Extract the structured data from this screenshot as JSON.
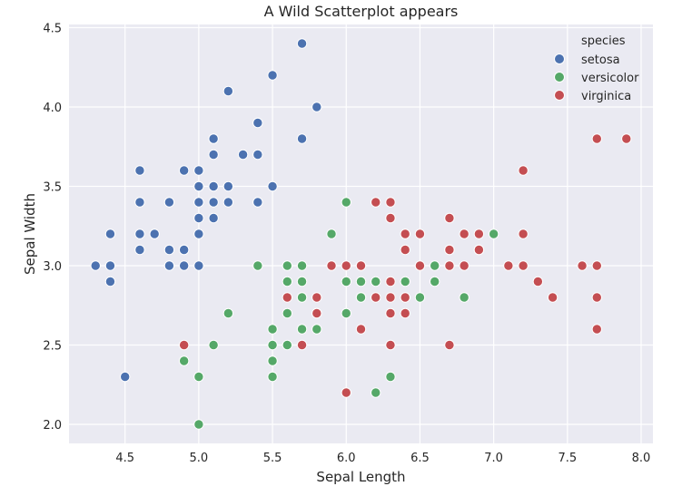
{
  "chart_data": {
    "type": "scatter",
    "title": "A Wild Scatterplot appears",
    "xlabel": "Sepal Length",
    "ylabel": "Sepal Width",
    "xlim": [
      4.12,
      8.08
    ],
    "ylim": [
      1.88,
      4.52
    ],
    "xticks": [
      4.5,
      5.0,
      5.5,
      6.0,
      6.5,
      7.0,
      7.5,
      8.0
    ],
    "xtick_labels": [
      "4.5",
      "5.0",
      "5.5",
      "6.0",
      "6.5",
      "7.0",
      "7.5",
      "8.0"
    ],
    "yticks": [
      2.0,
      2.5,
      3.0,
      3.5,
      4.0,
      4.5
    ],
    "ytick_labels": [
      "2.0",
      "2.5",
      "3.0",
      "3.5",
      "4.0",
      "4.5"
    ],
    "grid": true,
    "background": "#eaeaf2",
    "legend": {
      "title": "species",
      "placement": "top-right"
    },
    "series": [
      {
        "name": "setosa",
        "color": "#4c72b0",
        "points": [
          [
            5.1,
            3.5
          ],
          [
            4.9,
            3.0
          ],
          [
            4.7,
            3.2
          ],
          [
            4.6,
            3.1
          ],
          [
            5.0,
            3.6
          ],
          [
            5.4,
            3.9
          ],
          [
            4.6,
            3.4
          ],
          [
            5.0,
            3.4
          ],
          [
            4.4,
            2.9
          ],
          [
            4.9,
            3.1
          ],
          [
            5.4,
            3.7
          ],
          [
            4.8,
            3.4
          ],
          [
            4.8,
            3.0
          ],
          [
            4.3,
            3.0
          ],
          [
            5.8,
            4.0
          ],
          [
            5.7,
            4.4
          ],
          [
            5.4,
            3.9
          ],
          [
            5.1,
            3.5
          ],
          [
            5.7,
            3.8
          ],
          [
            5.1,
            3.8
          ],
          [
            5.4,
            3.4
          ],
          [
            5.1,
            3.7
          ],
          [
            4.6,
            3.6
          ],
          [
            5.1,
            3.3
          ],
          [
            4.8,
            3.4
          ],
          [
            5.0,
            3.0
          ],
          [
            5.0,
            3.4
          ],
          [
            5.2,
            3.5
          ],
          [
            5.2,
            3.4
          ],
          [
            4.7,
            3.2
          ],
          [
            4.8,
            3.1
          ],
          [
            5.4,
            3.4
          ],
          [
            5.2,
            4.1
          ],
          [
            5.5,
            4.2
          ],
          [
            4.9,
            3.1
          ],
          [
            5.0,
            3.2
          ],
          [
            5.5,
            3.5
          ],
          [
            4.9,
            3.6
          ],
          [
            4.4,
            3.0
          ],
          [
            5.1,
            3.4
          ],
          [
            5.0,
            3.5
          ],
          [
            4.5,
            2.3
          ],
          [
            4.4,
            3.2
          ],
          [
            5.0,
            3.5
          ],
          [
            5.1,
            3.8
          ],
          [
            4.8,
            3.0
          ],
          [
            5.1,
            3.8
          ],
          [
            4.6,
            3.2
          ],
          [
            5.3,
            3.7
          ],
          [
            5.0,
            3.3
          ]
        ]
      },
      {
        "name": "versicolor",
        "color": "#55a868",
        "points": [
          [
            7.0,
            3.2
          ],
          [
            6.4,
            3.2
          ],
          [
            6.9,
            3.1
          ],
          [
            5.5,
            2.3
          ],
          [
            6.5,
            2.8
          ],
          [
            5.7,
            2.8
          ],
          [
            6.3,
            3.3
          ],
          [
            4.9,
            2.4
          ],
          [
            6.6,
            2.9
          ],
          [
            5.2,
            2.7
          ],
          [
            5.0,
            2.0
          ],
          [
            5.9,
            3.0
          ],
          [
            6.0,
            2.2
          ],
          [
            6.1,
            2.9
          ],
          [
            5.6,
            2.9
          ],
          [
            6.7,
            3.1
          ],
          [
            5.6,
            3.0
          ],
          [
            5.8,
            2.7
          ],
          [
            6.2,
            2.2
          ],
          [
            5.6,
            2.5
          ],
          [
            5.9,
            3.2
          ],
          [
            6.1,
            2.8
          ],
          [
            6.3,
            2.5
          ],
          [
            6.1,
            2.8
          ],
          [
            6.4,
            2.9
          ],
          [
            6.6,
            3.0
          ],
          [
            6.8,
            2.8
          ],
          [
            6.7,
            3.0
          ],
          [
            6.0,
            2.9
          ],
          [
            5.7,
            2.6
          ],
          [
            5.5,
            2.4
          ],
          [
            5.5,
            2.4
          ],
          [
            5.8,
            2.7
          ],
          [
            6.0,
            2.7
          ],
          [
            5.4,
            3.0
          ],
          [
            6.0,
            3.4
          ],
          [
            6.7,
            3.1
          ],
          [
            6.3,
            2.3
          ],
          [
            5.6,
            3.0
          ],
          [
            5.5,
            2.5
          ],
          [
            5.5,
            2.6
          ],
          [
            6.1,
            3.0
          ],
          [
            5.8,
            2.6
          ],
          [
            5.0,
            2.3
          ],
          [
            5.6,
            2.7
          ],
          [
            5.7,
            3.0
          ],
          [
            5.7,
            2.9
          ],
          [
            6.2,
            2.9
          ],
          [
            5.1,
            2.5
          ],
          [
            5.7,
            2.8
          ]
        ]
      },
      {
        "name": "virginica",
        "color": "#c44e52",
        "points": [
          [
            6.3,
            3.3
          ],
          [
            5.8,
            2.7
          ],
          [
            7.1,
            3.0
          ],
          [
            6.3,
            2.9
          ],
          [
            6.5,
            3.0
          ],
          [
            7.6,
            3.0
          ],
          [
            4.9,
            2.5
          ],
          [
            7.3,
            2.9
          ],
          [
            6.7,
            2.5
          ],
          [
            7.2,
            3.6
          ],
          [
            6.5,
            3.2
          ],
          [
            6.4,
            2.7
          ],
          [
            6.8,
            3.0
          ],
          [
            5.7,
            2.5
          ],
          [
            5.8,
            2.8
          ],
          [
            6.4,
            3.2
          ],
          [
            6.5,
            3.0
          ],
          [
            7.7,
            3.8
          ],
          [
            7.7,
            2.6
          ],
          [
            6.0,
            2.2
          ],
          [
            6.9,
            3.2
          ],
          [
            5.6,
            2.8
          ],
          [
            7.7,
            2.8
          ],
          [
            6.3,
            2.7
          ],
          [
            6.7,
            3.3
          ],
          [
            7.2,
            3.2
          ],
          [
            6.2,
            2.8
          ],
          [
            6.1,
            3.0
          ],
          [
            6.4,
            2.8
          ],
          [
            7.2,
            3.0
          ],
          [
            7.4,
            2.8
          ],
          [
            7.9,
            3.8
          ],
          [
            6.4,
            2.8
          ],
          [
            6.3,
            2.8
          ],
          [
            6.1,
            2.6
          ],
          [
            7.7,
            3.0
          ],
          [
            6.3,
            3.4
          ],
          [
            6.4,
            3.1
          ],
          [
            6.0,
            3.0
          ],
          [
            6.9,
            3.1
          ],
          [
            6.7,
            3.1
          ],
          [
            6.9,
            3.1
          ],
          [
            5.8,
            2.7
          ],
          [
            6.8,
            3.2
          ],
          [
            6.7,
            3.3
          ],
          [
            6.7,
            3.0
          ],
          [
            6.3,
            2.5
          ],
          [
            6.5,
            3.0
          ],
          [
            6.2,
            3.4
          ],
          [
            5.9,
            3.0
          ]
        ]
      }
    ]
  }
}
